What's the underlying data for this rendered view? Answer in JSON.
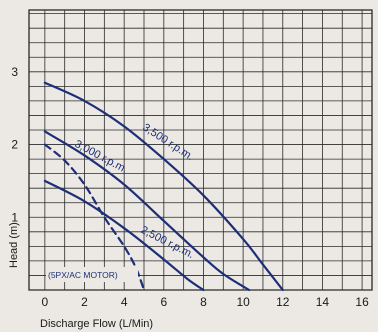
{
  "chart_data": {
    "type": "line",
    "title": "",
    "xlabel": "Discharge Flow  (L/Min)",
    "ylabel": "Head (m)",
    "xlim": [
      -0.8,
      16.5
    ],
    "ylim": [
      0,
      3.85
    ],
    "x_ticks": [
      0,
      2,
      4,
      6,
      8,
      10,
      12,
      14,
      16
    ],
    "x_tick_labels": [
      "0",
      "2",
      "4",
      "6",
      "8",
      "10",
      "12",
      "14",
      "16"
    ],
    "y_ticks": [
      1,
      2,
      3
    ],
    "y_tick_labels": [
      "1",
      "2",
      "3"
    ],
    "grid": true,
    "grid_x_step": 1,
    "grid_y_step": 0.2,
    "annotation": "(5PX/AC MOTOR)",
    "series": [
      {
        "name": "3,500 r.p.m.",
        "style": "solid",
        "color": "#1e2f78",
        "x": [
          0,
          2,
          4,
          6,
          8,
          10,
          11,
          12
        ],
        "y": [
          2.85,
          2.6,
          2.25,
          1.8,
          1.3,
          0.7,
          0.35,
          0
        ]
      },
      {
        "name": "3,000 r.p.m.",
        "style": "solid",
        "color": "#1e2f78",
        "x": [
          0,
          2,
          4,
          6,
          8,
          9,
          10.3
        ],
        "y": [
          2.18,
          1.85,
          1.45,
          0.95,
          0.45,
          0.22,
          0
        ]
      },
      {
        "name": "2,500 r.p.m.",
        "style": "solid",
        "color": "#1e2f78",
        "x": [
          0,
          2,
          4,
          6,
          7.2,
          8
        ],
        "y": [
          1.5,
          1.22,
          0.85,
          0.42,
          0.15,
          0
        ]
      },
      {
        "name": "",
        "style": "dashed",
        "color": "#1e2f78",
        "x": [
          0,
          1,
          2,
          3,
          4,
          4.6,
          5
        ],
        "y": [
          2.0,
          1.78,
          1.45,
          1.0,
          0.6,
          0.3,
          0
        ]
      }
    ]
  }
}
